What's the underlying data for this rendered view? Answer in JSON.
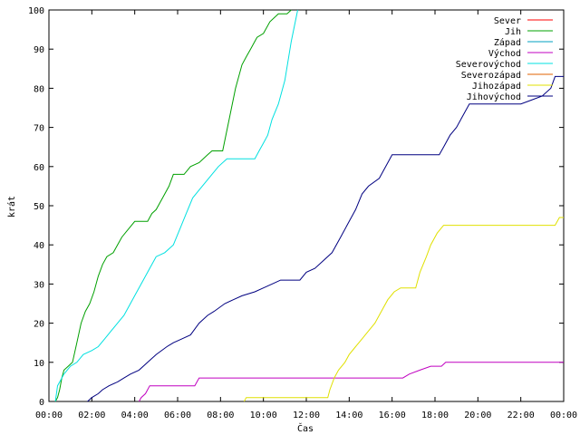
{
  "chart_data": {
    "type": "line",
    "xlabel": "Čas",
    "ylabel": "krát",
    "xlim": [
      0,
      24
    ],
    "ylim": [
      0,
      100
    ],
    "x_ticks": [
      "00:00",
      "02:00",
      "04:00",
      "06:00",
      "08:00",
      "10:00",
      "12:00",
      "14:00",
      "16:00",
      "18:00",
      "20:00",
      "22:00",
      "00:00"
    ],
    "y_ticks": [
      "0",
      "10",
      "20",
      "30",
      "40",
      "50",
      "60",
      "70",
      "80",
      "90",
      "100"
    ],
    "grid": false,
    "legend_position": "top-right",
    "series": [
      {
        "name": "Sever",
        "color": "#ff0000",
        "points": []
      },
      {
        "name": "Jih",
        "color": "#00a000",
        "points": [
          [
            0.3,
            0
          ],
          [
            0.4,
            1
          ],
          [
            0.5,
            3
          ],
          [
            0.6,
            6
          ],
          [
            0.7,
            8
          ],
          [
            0.9,
            9
          ],
          [
            1.1,
            10
          ],
          [
            1.3,
            15
          ],
          [
            1.5,
            20
          ],
          [
            1.7,
            23
          ],
          [
            1.9,
            25
          ],
          [
            2.1,
            28
          ],
          [
            2.3,
            32
          ],
          [
            2.5,
            35
          ],
          [
            2.7,
            37
          ],
          [
            3.0,
            38
          ],
          [
            3.2,
            40
          ],
          [
            3.4,
            42
          ],
          [
            3.7,
            44
          ],
          [
            4.0,
            46
          ],
          [
            4.6,
            46
          ],
          [
            4.8,
            48
          ],
          [
            5.0,
            49
          ],
          [
            5.3,
            52
          ],
          [
            5.6,
            55
          ],
          [
            5.8,
            58
          ],
          [
            6.3,
            58
          ],
          [
            6.6,
            60
          ],
          [
            7.0,
            61
          ],
          [
            7.4,
            63
          ],
          [
            7.6,
            64
          ],
          [
            8.1,
            64
          ],
          [
            8.4,
            72
          ],
          [
            8.7,
            80
          ],
          [
            9.0,
            86
          ],
          [
            9.2,
            88
          ],
          [
            9.4,
            90
          ],
          [
            9.7,
            93
          ],
          [
            10.0,
            94
          ],
          [
            10.3,
            97
          ],
          [
            10.5,
            98
          ],
          [
            10.7,
            99
          ],
          [
            11.1,
            99
          ],
          [
            11.3,
            100
          ]
        ]
      },
      {
        "name": "Západ",
        "color": "#00a0c0",
        "points": []
      },
      {
        "name": "Východ",
        "color": "#c000c0",
        "points": [
          [
            4.2,
            0
          ],
          [
            4.3,
            1
          ],
          [
            4.5,
            2
          ],
          [
            4.6,
            3
          ],
          [
            4.7,
            4
          ],
          [
            6.8,
            4
          ],
          [
            7.0,
            6
          ],
          [
            16.5,
            6
          ],
          [
            16.8,
            7
          ],
          [
            17.3,
            8
          ],
          [
            17.8,
            9
          ],
          [
            18.3,
            9
          ],
          [
            18.5,
            10
          ],
          [
            24,
            10
          ]
        ]
      },
      {
        "name": "Severovýchod",
        "color": "#00e0e0",
        "points": [
          [
            0.3,
            0
          ],
          [
            0.4,
            4
          ],
          [
            0.7,
            7
          ],
          [
            1.0,
            9
          ],
          [
            1.3,
            10
          ],
          [
            1.6,
            12
          ],
          [
            2.0,
            13
          ],
          [
            2.3,
            14
          ],
          [
            2.6,
            16
          ],
          [
            2.9,
            18
          ],
          [
            3.2,
            20
          ],
          [
            3.5,
            22
          ],
          [
            3.8,
            25
          ],
          [
            4.1,
            28
          ],
          [
            4.4,
            31
          ],
          [
            4.7,
            34
          ],
          [
            5.0,
            37
          ],
          [
            5.4,
            38
          ],
          [
            5.8,
            40
          ],
          [
            6.1,
            44
          ],
          [
            6.4,
            48
          ],
          [
            6.7,
            52
          ],
          [
            7.0,
            54
          ],
          [
            7.3,
            56
          ],
          [
            7.6,
            58
          ],
          [
            7.9,
            60
          ],
          [
            8.3,
            62
          ],
          [
            9.6,
            62
          ],
          [
            9.8,
            64
          ],
          [
            10.0,
            66
          ],
          [
            10.2,
            68
          ],
          [
            10.4,
            72
          ],
          [
            10.7,
            76
          ],
          [
            11.0,
            82
          ],
          [
            11.3,
            92
          ],
          [
            11.6,
            100
          ]
        ]
      },
      {
        "name": "Severozápad",
        "color": "#e06000",
        "points": []
      },
      {
        "name": "Jihozápad",
        "color": "#e0e000",
        "points": [
          [
            9.1,
            0
          ],
          [
            9.2,
            1
          ],
          [
            13.0,
            1
          ],
          [
            13.1,
            3
          ],
          [
            13.3,
            6
          ],
          [
            13.5,
            8
          ],
          [
            13.8,
            10
          ],
          [
            14.0,
            12
          ],
          [
            14.3,
            14
          ],
          [
            14.6,
            16
          ],
          [
            14.9,
            18
          ],
          [
            15.2,
            20
          ],
          [
            15.5,
            23
          ],
          [
            15.8,
            26
          ],
          [
            16.1,
            28
          ],
          [
            16.4,
            29
          ],
          [
            17.1,
            29
          ],
          [
            17.3,
            33
          ],
          [
            17.6,
            37
          ],
          [
            17.8,
            40
          ],
          [
            18.1,
            43
          ],
          [
            18.4,
            45
          ],
          [
            23.6,
            45
          ],
          [
            23.8,
            47
          ],
          [
            24,
            47
          ]
        ]
      },
      {
        "name": "Jihovýchod",
        "color": "#000080",
        "points": [
          [
            1.8,
            0
          ],
          [
            2.0,
            1
          ],
          [
            2.3,
            2
          ],
          [
            2.5,
            3
          ],
          [
            2.8,
            4
          ],
          [
            3.2,
            5
          ],
          [
            3.5,
            6
          ],
          [
            3.8,
            7
          ],
          [
            4.2,
            8
          ],
          [
            4.6,
            10
          ],
          [
            5.0,
            12
          ],
          [
            5.5,
            14
          ],
          [
            5.8,
            15
          ],
          [
            6.2,
            16
          ],
          [
            6.6,
            17
          ],
          [
            7.0,
            20
          ],
          [
            7.4,
            22
          ],
          [
            7.7,
            23
          ],
          [
            8.2,
            25
          ],
          [
            8.6,
            26
          ],
          [
            9.0,
            27
          ],
          [
            9.6,
            28
          ],
          [
            10.0,
            29
          ],
          [
            10.4,
            30
          ],
          [
            10.8,
            31
          ],
          [
            11.7,
            31
          ],
          [
            12.0,
            33
          ],
          [
            12.4,
            34
          ],
          [
            12.8,
            36
          ],
          [
            13.2,
            38
          ],
          [
            13.6,
            42
          ],
          [
            14.0,
            46
          ],
          [
            14.3,
            49
          ],
          [
            14.6,
            53
          ],
          [
            14.9,
            55
          ],
          [
            15.4,
            57
          ],
          [
            15.7,
            60
          ],
          [
            16.0,
            63
          ],
          [
            18.2,
            63
          ],
          [
            18.4,
            65
          ],
          [
            18.7,
            68
          ],
          [
            19.0,
            70
          ],
          [
            19.3,
            73
          ],
          [
            19.6,
            76
          ],
          [
            20.2,
            76
          ],
          [
            21.0,
            76
          ],
          [
            22.0,
            76
          ],
          [
            22.5,
            77
          ],
          [
            23.0,
            78
          ],
          [
            23.4,
            80
          ],
          [
            23.6,
            83
          ],
          [
            24,
            83
          ]
        ]
      }
    ]
  }
}
